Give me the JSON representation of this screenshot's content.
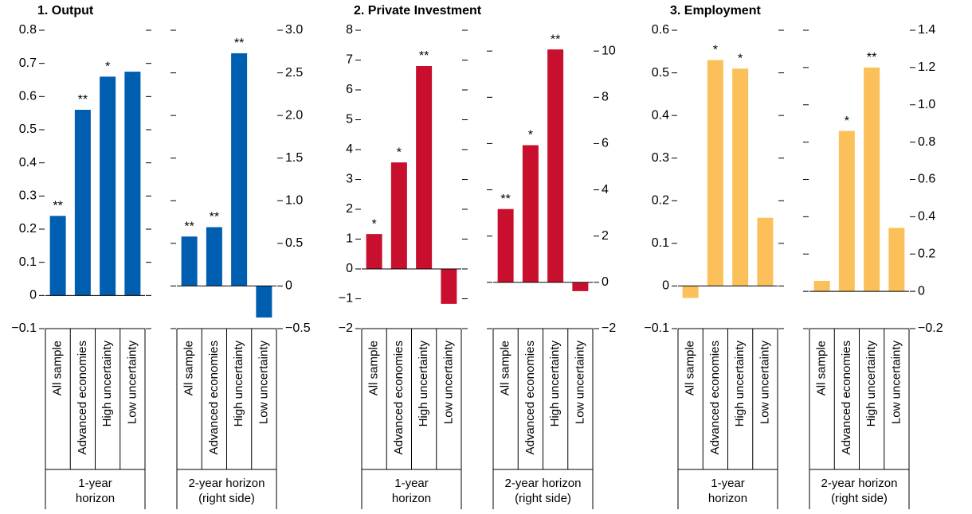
{
  "chart_data": [
    {
      "type": "bar",
      "title": "1. Output",
      "categories": [
        "All sample",
        "Advanced economies",
        "High uncertainty",
        "Low uncertainty"
      ],
      "series": [
        {
          "name": "1-year\nhorizon",
          "color": "#005eb0",
          "values": [
            0.24,
            0.56,
            0.66,
            0.675
          ],
          "significance": [
            "**",
            "**",
            "*",
            null
          ]
        },
        {
          "name": "2-year horizon\n(right side)",
          "color": "#005eb0",
          "axis": "y2",
          "values": [
            0.58,
            0.69,
            2.73,
            -0.37
          ],
          "significance": [
            "**",
            "**",
            "**",
            null
          ]
        }
      ],
      "ylim": [
        -0.1,
        0.8
      ],
      "yticks": [
        0.8,
        0.7,
        0.6,
        0.5,
        0.4,
        0.3,
        0.2,
        0.1,
        0,
        {
          "value": -0.1,
          "label": "−0.1"
        }
      ],
      "y2lim": [
        -0.5,
        3.0
      ],
      "y2ticks": [
        {
          "value": 3.0,
          "label": "3.0"
        },
        2.5,
        {
          "value": 2.0,
          "label": "2.0"
        },
        1.5,
        {
          "value": 1.0,
          "label": "1.0"
        },
        0.5,
        0,
        {
          "value": -0.5,
          "label": "−0.5"
        }
      ],
      "grid": false
    },
    {
      "type": "bar",
      "title": "2. Private Investment",
      "categories": [
        "All sample",
        "Advanced economies",
        "High uncertainty",
        "Low uncertainty"
      ],
      "series": [
        {
          "name": "1-year\nhorizon",
          "color": "#c8102e",
          "values": [
            1.17,
            3.57,
            6.8,
            -1.17
          ],
          "significance": [
            "*",
            "*",
            "**",
            null
          ]
        },
        {
          "name": "2-year horizon\n(right side)",
          "color": "#c8102e",
          "axis": "y2",
          "values": [
            3.17,
            5.93,
            10.07,
            -0.38
          ],
          "significance": [
            "**",
            "*",
            "**",
            null
          ]
        }
      ],
      "ylim": [
        -2,
        8
      ],
      "yticks": [
        8,
        7,
        6,
        5,
        4,
        3,
        2,
        1,
        0,
        {
          "value": -1,
          "label": "−1"
        },
        {
          "value": -2,
          "label": "−2"
        }
      ],
      "y2lim": [
        -2,
        10.9
      ],
      "y2ticks": [
        10,
        8,
        6,
        4,
        2,
        0,
        {
          "value": -2,
          "label": "−2"
        }
      ],
      "grid": false
    },
    {
      "type": "bar",
      "title": "3. Employment",
      "categories": [
        "All sample",
        "Advanced economies",
        "High uncertainty",
        "Low uncertainty"
      ],
      "series": [
        {
          "name": "1-year\nhorizon",
          "color": "#fcc05a",
          "values": [
            -0.028,
            0.53,
            0.51,
            0.16
          ],
          "significance": [
            null,
            "*",
            "*",
            null
          ]
        },
        {
          "name": "2-year horizon\n(right side)",
          "color": "#fcc05a",
          "axis": "y2",
          "values": [
            0.056,
            0.86,
            1.2,
            0.34
          ],
          "significance": [
            null,
            "*",
            "**",
            null
          ]
        }
      ],
      "ylim": [
        -0.1,
        0.6
      ],
      "yticks": [
        0.6,
        0.5,
        0.4,
        0.3,
        0.2,
        0.1,
        0,
        {
          "value": -0.1,
          "label": "−0.1"
        }
      ],
      "y2lim": [
        -0.2,
        1.4
      ],
      "y2ticks": [
        1.4,
        1.2,
        {
          "value": 1.0,
          "label": "1.0"
        },
        0.8,
        0.6,
        0.4,
        0.2,
        0,
        {
          "value": -0.2,
          "label": "−0.2"
        }
      ],
      "grid": false
    }
  ]
}
